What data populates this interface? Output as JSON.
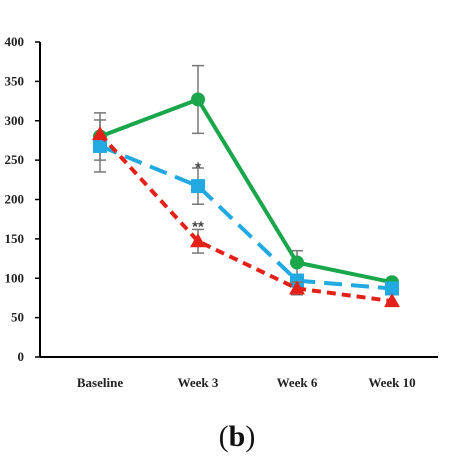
{
  "panel_label": {
    "open": "(",
    "letter": "b",
    "close": ")"
  },
  "chart_data": {
    "type": "line",
    "categories": [
      "Baseline",
      "Week 3",
      "Week 6",
      "Week 10"
    ],
    "ylim": [
      0,
      400
    ],
    "yticks": [
      0,
      50,
      100,
      150,
      200,
      250,
      300,
      350,
      400
    ],
    "grid": false,
    "series": [
      {
        "color": "#1aa64b",
        "dash": "solid",
        "marker": "circle",
        "values": [
          280,
          327,
          120,
          95
        ],
        "errors": [
          30,
          43,
          15,
          0
        ]
      },
      {
        "color": "#21a9e1",
        "dash": "dashed",
        "marker": "square",
        "values": [
          268,
          217,
          97,
          87
        ],
        "errors": [
          33,
          23,
          0,
          0
        ]
      },
      {
        "color": "#e32119",
        "dash": "dotted",
        "marker": "triangle",
        "values": [
          283,
          147,
          87,
          71
        ],
        "errors": [
          0,
          15,
          8,
          0
        ]
      }
    ],
    "annotations": [
      {
        "text": "*",
        "category": "Week 3",
        "y": 247
      },
      {
        "text": "**",
        "category": "Week 3",
        "y": 172
      }
    ]
  }
}
